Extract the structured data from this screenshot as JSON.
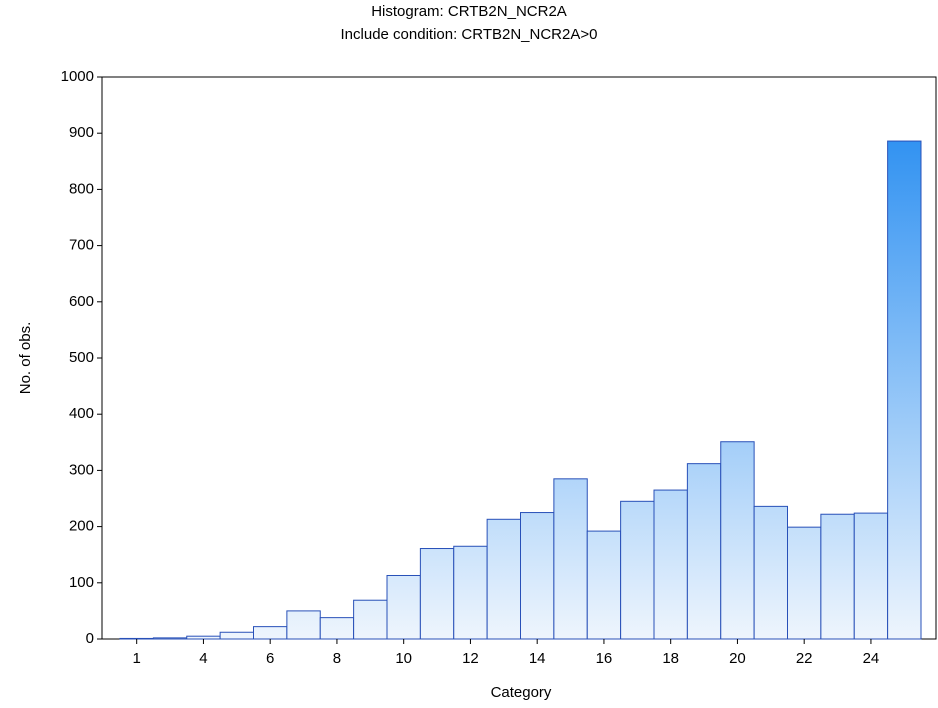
{
  "chart_data": {
    "type": "bar",
    "title": "Histogram: CRTB2N_NCR2A",
    "subtitle": "Include condition: CRTB2N_NCR2A>0",
    "x_label": "Category",
    "y_label": "No. of obs.",
    "categories": [
      "1",
      null,
      "4",
      null,
      "6",
      null,
      "8",
      null,
      "10",
      null,
      "12",
      null,
      "14",
      null,
      "16",
      null,
      "18",
      null,
      "20",
      null,
      "22",
      null,
      "24",
      null
    ],
    "values": [
      1,
      2,
      5,
      12,
      22,
      50,
      38,
      69,
      113,
      161,
      165,
      213,
      225,
      285,
      192,
      245,
      265,
      312,
      351,
      236,
      199,
      222,
      224,
      886
    ],
    "color": "#1a86f0",
    "ylim": [
      0,
      1000
    ],
    "yticks": [
      0,
      100,
      200,
      300,
      400,
      500,
      600,
      700,
      800,
      900,
      1000
    ]
  }
}
